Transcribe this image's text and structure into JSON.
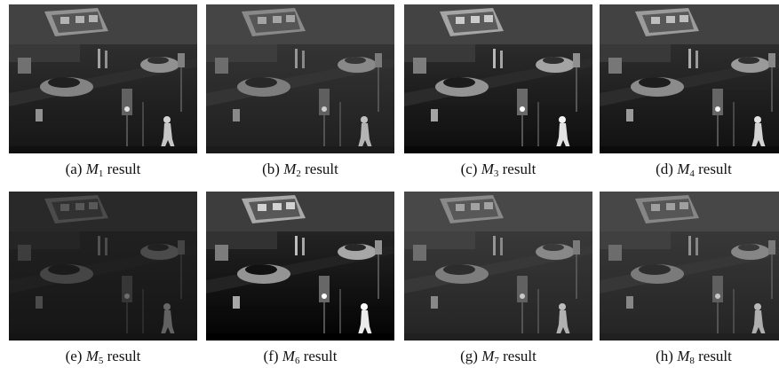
{
  "figure": {
    "panels": [
      {
        "tag": "(a)",
        "symbol": "M",
        "sub": "1",
        "suffix": "result"
      },
      {
        "tag": "(b)",
        "symbol": "M",
        "sub": "2",
        "suffix": "result"
      },
      {
        "tag": "(c)",
        "symbol": "M",
        "sub": "3",
        "suffix": "result"
      },
      {
        "tag": "(d)",
        "symbol": "M",
        "sub": "4",
        "suffix": "result"
      },
      {
        "tag": "(e)",
        "symbol": "M",
        "sub": "5",
        "suffix": "result"
      },
      {
        "tag": "(f)",
        "symbol": "M",
        "sub": "6",
        "suffix": "result"
      },
      {
        "tag": "(g)",
        "symbol": "M",
        "sub": "7",
        "suffix": "result"
      },
      {
        "tag": "(h)",
        "symbol": "M",
        "sub": "8",
        "suffix": "result"
      }
    ]
  }
}
